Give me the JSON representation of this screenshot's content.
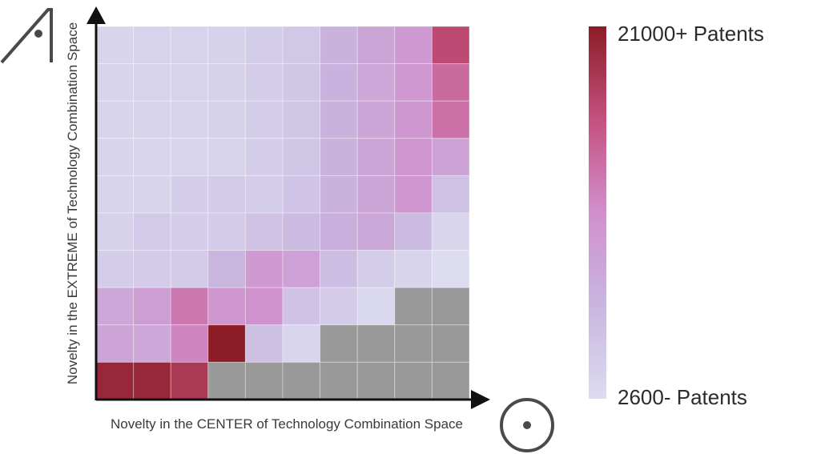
{
  "chart_data": {
    "type": "heatmap",
    "title": "",
    "xlabel": "Novelty in the CENTER of Technology Combination Space",
    "ylabel": "Novelty in the EXTREME of Technology Combination Space",
    "colorbar": {
      "max_label": "21000+ Patents",
      "min_label": "2600- Patents",
      "range": [
        2600,
        21000
      ],
      "colors": [
        "#dcdcf0",
        "#c8b6df",
        "#d18fcc",
        "#c4517f",
        "#8c1c26"
      ],
      "missing_color": "#999999"
    },
    "grid": {
      "rows": 10,
      "cols": 10
    },
    "values": [
      [
        3600,
        3700,
        3700,
        3800,
        4400,
        5200,
        7600,
        9200,
        10500,
        17000
      ],
      [
        3600,
        3700,
        3700,
        3800,
        4400,
        5300,
        7700,
        9000,
        10700,
        14500
      ],
      [
        3600,
        3700,
        3700,
        3800,
        4400,
        5300,
        7600,
        9100,
        10800,
        14000
      ],
      [
        3600,
        3500,
        3400,
        3700,
        4400,
        5300,
        7600,
        9100,
        11000,
        9500
      ],
      [
        3600,
        3600,
        4300,
        4700,
        4400,
        5400,
        7600,
        9200,
        11000,
        5800
      ],
      [
        3800,
        4800,
        4300,
        4600,
        5700,
        6600,
        8200,
        8900,
        6600,
        3400
      ],
      [
        4400,
        4600,
        4700,
        7200,
        10500,
        9700,
        6300,
        4400,
        3600,
        2600
      ],
      [
        9000,
        10000,
        13500,
        11000,
        11500,
        5700,
        4700,
        3100,
        null,
        null
      ],
      [
        9300,
        9000,
        12500,
        21000,
        6000,
        3400,
        null,
        null,
        null,
        null
      ],
      [
        20000,
        20000,
        18500,
        null,
        null,
        null,
        null,
        null,
        null,
        null
      ]
    ]
  },
  "icons": {
    "top_left": "pyramid-eye-icon",
    "bottom_right": "circle-dot-icon"
  }
}
